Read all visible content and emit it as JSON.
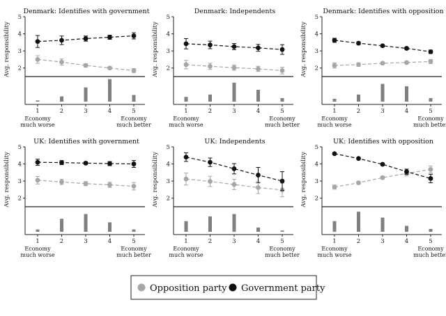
{
  "legend": {
    "opposition": "Opposition party",
    "government": "Government party"
  },
  "colors": {
    "opposition": "#a6a6a6",
    "government": "#111111",
    "histogram": "#808080"
  },
  "labels": {
    "ylabel": "Avg. responsibility",
    "left_end": [
      "Economy",
      "much worse"
    ],
    "right_end": [
      "Economy",
      "much better"
    ]
  },
  "chart_data": [
    {
      "type": "line",
      "title": "Denmark: Identifies with government",
      "xlabel": "",
      "ylabel": "Avg. responsibility",
      "x": [
        1,
        2,
        3,
        4,
        5
      ],
      "ylim": [
        1.5,
        5
      ],
      "yticks": [
        2,
        3,
        4,
        5
      ],
      "series": [
        {
          "name": "Government party",
          "values": [
            3.55,
            3.62,
            3.72,
            3.8,
            3.88
          ],
          "ci": [
            0.35,
            0.25,
            0.15,
            0.12,
            0.18
          ]
        },
        {
          "name": "Opposition party",
          "values": [
            2.5,
            2.35,
            2.15,
            2.0,
            1.85
          ],
          "ci": [
            0.22,
            0.18,
            0.1,
            0.08,
            0.12
          ]
        }
      ],
      "histogram": [
        0.05,
        0.22,
        0.6,
        0.95,
        0.28
      ]
    },
    {
      "type": "line",
      "title": "Denmark: Independents",
      "xlabel": "",
      "ylabel": "Avg. responsibility",
      "x": [
        1,
        2,
        3,
        4,
        5
      ],
      "ylim": [
        1.5,
        5
      ],
      "yticks": [
        2,
        3,
        4,
        5
      ],
      "series": [
        {
          "name": "Government party",
          "values": [
            3.42,
            3.35,
            3.25,
            3.18,
            3.08
          ],
          "ci": [
            0.3,
            0.22,
            0.18,
            0.2,
            0.28
          ]
        },
        {
          "name": "Opposition party",
          "values": [
            2.2,
            2.1,
            2.02,
            1.95,
            1.85
          ],
          "ci": [
            0.25,
            0.18,
            0.15,
            0.15,
            0.2
          ]
        }
      ],
      "histogram": [
        0.2,
        0.3,
        0.8,
        0.5,
        0.15
      ]
    },
    {
      "type": "line",
      "title": "Denmark: Identifies with opposition",
      "xlabel": "",
      "ylabel": "Avg. responsibility",
      "x": [
        1,
        2,
        3,
        4,
        5
      ],
      "ylim": [
        1.5,
        5
      ],
      "yticks": [
        2,
        3,
        4,
        5
      ],
      "series": [
        {
          "name": "Government party",
          "values": [
            3.62,
            3.45,
            3.3,
            3.15,
            2.95
          ],
          "ci": [
            0.12,
            0.08,
            0.06,
            0.07,
            0.1
          ]
        },
        {
          "name": "Opposition party",
          "values": [
            2.15,
            2.2,
            2.28,
            2.32,
            2.38
          ],
          "ci": [
            0.15,
            0.1,
            0.07,
            0.08,
            0.12
          ]
        }
      ],
      "histogram": [
        0.12,
        0.3,
        0.75,
        0.65,
        0.15
      ]
    },
    {
      "type": "line",
      "title": "UK: Identifies with government",
      "xlabel": "",
      "ylabel": "Avg. responsibility",
      "x": [
        1,
        2,
        3,
        4,
        5
      ],
      "ylim": [
        1.5,
        5
      ],
      "yticks": [
        2,
        3,
        4,
        5
      ],
      "series": [
        {
          "name": "Government party",
          "values": [
            4.1,
            4.08,
            4.05,
            4.02,
            4.0
          ],
          "ci": [
            0.18,
            0.12,
            0.08,
            0.12,
            0.2
          ]
        },
        {
          "name": "Opposition party",
          "values": [
            3.05,
            2.95,
            2.85,
            2.78,
            2.7
          ],
          "ci": [
            0.22,
            0.15,
            0.12,
            0.15,
            0.22
          ]
        }
      ],
      "histogram": [
        0.1,
        0.55,
        0.75,
        0.4,
        0.1
      ]
    },
    {
      "type": "line",
      "title": "UK: Independents",
      "xlabel": "",
      "ylabel": "Avg. responsibility",
      "x": [
        1,
        2,
        3,
        4,
        5
      ],
      "ylim": [
        1.5,
        5
      ],
      "yticks": [
        2,
        3,
        4,
        5
      ],
      "series": [
        {
          "name": "Government party",
          "values": [
            4.4,
            4.1,
            3.72,
            3.35,
            3.0
          ],
          "ci": [
            0.25,
            0.25,
            0.3,
            0.45,
            0.55
          ]
        },
        {
          "name": "Opposition party",
          "values": [
            3.12,
            2.98,
            2.8,
            2.62,
            2.48
          ],
          "ci": [
            0.35,
            0.3,
            0.3,
            0.35,
            0.4
          ]
        }
      ],
      "histogram": [
        0.45,
        0.65,
        0.75,
        0.18,
        0.05
      ]
    },
    {
      "type": "line",
      "title": "UK: Identifies with opposition",
      "xlabel": "",
      "ylabel": "Avg. responsibility",
      "x": [
        1,
        2,
        3,
        4,
        5
      ],
      "ylim": [
        1.5,
        5
      ],
      "yticks": [
        2,
        3,
        4,
        5
      ],
      "series": [
        {
          "name": "Government party",
          "values": [
            4.6,
            4.32,
            3.98,
            3.55,
            3.15
          ],
          "ci": [
            0.05,
            0.05,
            0.06,
            0.15,
            0.25
          ]
        },
        {
          "name": "Opposition party",
          "values": [
            2.65,
            2.9,
            3.2,
            3.45,
            3.68
          ],
          "ci": [
            0.12,
            0.08,
            0.07,
            0.15,
            0.2
          ]
        }
      ],
      "histogram": [
        0.45,
        0.85,
        0.6,
        0.25,
        0.12
      ]
    }
  ]
}
